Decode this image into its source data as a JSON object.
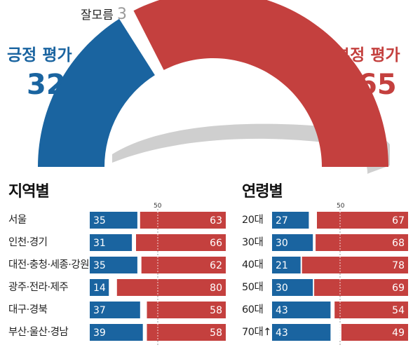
{
  "chart_data": [
    {
      "type": "pie",
      "labels": {
        "positive": "긍정 평가",
        "dontknow": "잘모름",
        "negative": "부정 평가"
      },
      "values": {
        "positive": "32",
        "dontknow": "3",
        "negative": "65"
      },
      "colors": {
        "positive": "#1a64a0",
        "negative": "#c4403e",
        "dontknow": "#ffffff",
        "shadow": "#cfcfcf"
      }
    },
    {
      "type": "bar",
      "title": "지역별",
      "tick_label": "50",
      "categories": [
        "서울",
        "인천·경기",
        "대전·충청·세종·강원",
        "광주·전라·제주",
        "대구·경북",
        "부산·울산·경남"
      ],
      "series": [
        {
          "key": "positive",
          "values": [
            "35",
            "31",
            "35",
            "14",
            "37",
            "39"
          ]
        },
        {
          "key": "negative",
          "values": [
            "63",
            "66",
            "62",
            "80",
            "58",
            "58"
          ]
        }
      ]
    },
    {
      "type": "bar",
      "title": "연령별",
      "tick_label": "50",
      "categories": [
        "20대",
        "30대",
        "40대",
        "50대",
        "60대",
        "70대↑"
      ],
      "series": [
        {
          "key": "positive",
          "values": [
            "27",
            "30",
            "21",
            "30",
            "43",
            "43"
          ]
        },
        {
          "key": "negative",
          "values": [
            "67",
            "68",
            "78",
            "69",
            "54",
            "49"
          ]
        }
      ]
    }
  ]
}
